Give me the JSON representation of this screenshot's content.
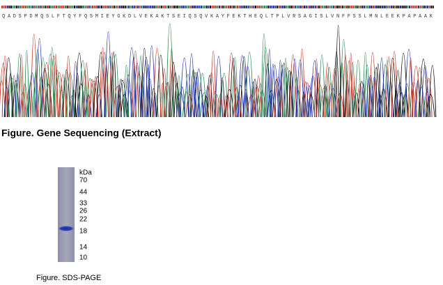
{
  "sequence": {
    "amino_acids": "Q A D S P D M Q S L F T Q Y F Q S M I E Y G K D L V E K A K T S E I Q S Q V K A Y F E K T H E Q L T P L V R S A G I S L V N F F S S L M N L E E K P A P A A K",
    "caption": "Figure. Gene Sequencing (Extract)"
  },
  "gel": {
    "unit": "kDa",
    "markers": [
      "70",
      "44",
      "33",
      "26",
      "22",
      "18",
      "14",
      "10"
    ],
    "caption": "Figure. SDS-PAGE"
  }
}
